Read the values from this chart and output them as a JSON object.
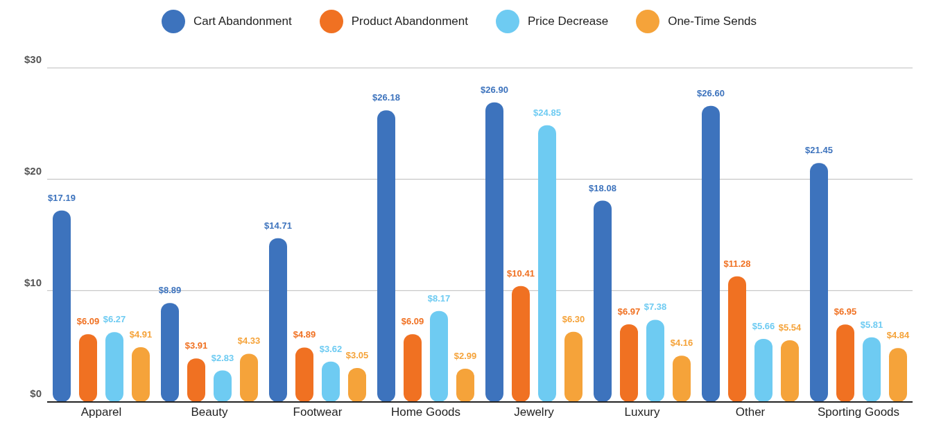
{
  "chart_data": {
    "type": "bar",
    "categories": [
      "Apparel",
      "Beauty",
      "Footwear",
      "Home Goods",
      "Jewelry",
      "Luxury",
      "Other",
      "Sporting Goods"
    ],
    "series": [
      {
        "name": "Cart Abandonment",
        "color": "#3d73bd",
        "values": [
          17.19,
          8.89,
          14.71,
          26.18,
          26.9,
          18.08,
          26.6,
          21.45
        ],
        "value_labels": [
          "$17.19",
          "$8.89",
          "$14.71",
          "$26.18",
          "$26.90",
          "$18.08",
          "$26.60",
          "$21.45"
        ]
      },
      {
        "name": "Product Abandonment",
        "color": "#f07122",
        "values": [
          6.09,
          3.91,
          4.89,
          6.09,
          10.41,
          6.97,
          11.28,
          6.95
        ],
        "value_labels": [
          "$6.09",
          "$3.91",
          "$4.89",
          "$6.09",
          "$10.41",
          "$6.97",
          "$11.28",
          "$6.95"
        ]
      },
      {
        "name": "Price Decrease",
        "color": "#6ecbf2",
        "values": [
          6.27,
          2.83,
          3.62,
          8.17,
          24.85,
          7.38,
          5.66,
          5.81
        ],
        "value_labels": [
          "$6.27",
          "$2.83",
          "$3.62",
          "$8.17",
          "$24.85",
          "$7.38",
          "$5.66",
          "$5.81"
        ]
      },
      {
        "name": "One-Time Sends",
        "color": "#f5a33a",
        "values": [
          4.91,
          4.33,
          3.05,
          2.99,
          6.3,
          4.16,
          5.54,
          4.84
        ],
        "value_labels": [
          "$4.91",
          "$4.33",
          "$3.05",
          "$2.99",
          "$6.30",
          "$4.16",
          "$5.54",
          "$4.84"
        ]
      }
    ],
    "ylim": [
      0,
      30
    ],
    "yticks": [
      {
        "value": 0,
        "label": "$0"
      },
      {
        "value": 10,
        "label": "$10"
      },
      {
        "value": 20,
        "label": "$20"
      },
      {
        "value": 30,
        "label": "$30"
      }
    ],
    "grid": "y",
    "legend": "top"
  }
}
